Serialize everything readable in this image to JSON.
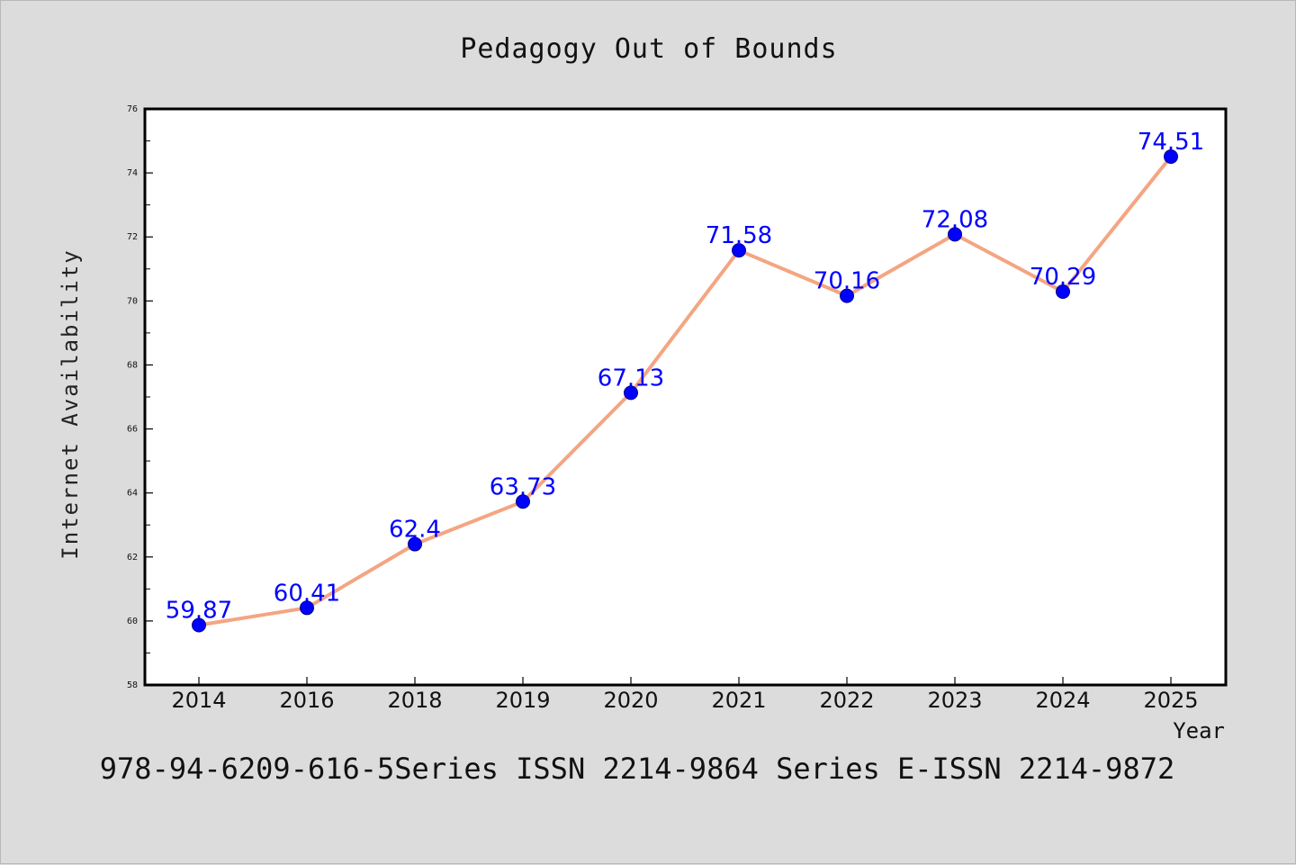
{
  "chart_data": {
    "type": "line",
    "title": "Pedagogy Out of Bounds",
    "xlabel": "Year",
    "ylabel": "Internet Availability",
    "categories": [
      "2014",
      "2016",
      "2018",
      "2019",
      "2020",
      "2021",
      "2022",
      "2023",
      "2024",
      "2025"
    ],
    "values": [
      59.87,
      60.41,
      62.4,
      63.73,
      67.13,
      71.58,
      70.16,
      72.08,
      70.29,
      74.51
    ],
    "data_labels": [
      "59.87",
      "60.41",
      "62.4",
      "63.73",
      "67.13",
      "71.58",
      "70.16",
      "72.08",
      "70.29",
      "74.51"
    ],
    "ylim": [
      58,
      76
    ],
    "yticks": [
      58,
      60,
      62,
      64,
      66,
      68,
      70,
      72,
      74,
      76
    ],
    "grid": false,
    "legend": "none",
    "line_color": "#f4a582",
    "marker_color": "#0000ff",
    "label_color": "#0000ff",
    "footer": "978-94-6209-616-5Series ISSN 2214-9864 Series E-ISSN 2214-9872"
  }
}
